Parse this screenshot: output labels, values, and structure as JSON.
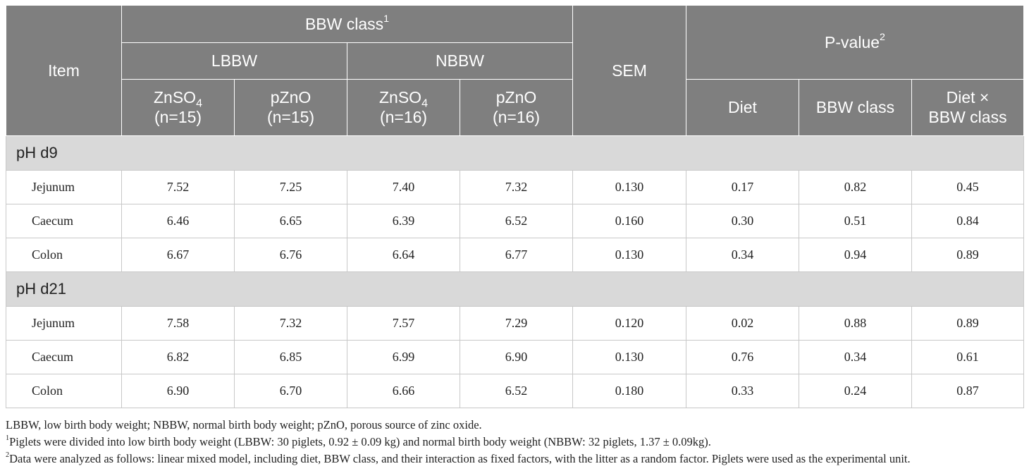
{
  "header": {
    "item": "Item",
    "bbw_class": "BBW class",
    "bbw_class_sup": "1",
    "lbbw": "LBBW",
    "nbbw": "NBBW",
    "sem": "SEM",
    "pvalue": "P-value",
    "pvalue_sup": "2",
    "cols": [
      {
        "base": "ZnSO",
        "sub": "4",
        "n": "(n=15)"
      },
      {
        "base": "pZnO",
        "sub": "",
        "n": "(n=15)"
      },
      {
        "base": "ZnSO",
        "sub": "4",
        "n": "(n=16)"
      },
      {
        "base": "pZnO",
        "sub": "",
        "n": "(n=16)"
      }
    ],
    "pcols": {
      "diet": "Diet",
      "bbw": "BBW class",
      "inter_line1": "Diet ×",
      "inter_line2": "BBW class"
    }
  },
  "sections": [
    {
      "title": "pH d9",
      "rows": [
        {
          "item": "Jejunum",
          "v": [
            "7.52",
            "7.25",
            "7.40",
            "7.32",
            "0.130",
            "0.17",
            "0.82",
            "0.45"
          ]
        },
        {
          "item": "Caecum",
          "v": [
            "6.46",
            "6.65",
            "6.39",
            "6.52",
            "0.160",
            "0.30",
            "0.51",
            "0.84"
          ]
        },
        {
          "item": "Colon",
          "v": [
            "6.67",
            "6.76",
            "6.64",
            "6.77",
            "0.130",
            "0.34",
            "0.94",
            "0.89"
          ]
        }
      ]
    },
    {
      "title": "pH d21",
      "rows": [
        {
          "item": "Jejunum",
          "v": [
            "7.58",
            "7.32",
            "7.57",
            "7.29",
            "0.120",
            "0.02",
            "0.88",
            "0.89"
          ]
        },
        {
          "item": "Caecum",
          "v": [
            "6.82",
            "6.85",
            "6.99",
            "6.90",
            "0.130",
            "0.76",
            "0.34",
            "0.61"
          ]
        },
        {
          "item": "Colon",
          "v": [
            "6.90",
            "6.70",
            "6.66",
            "6.52",
            "0.180",
            "0.33",
            "0.24",
            "0.87"
          ]
        }
      ]
    }
  ],
  "notes": {
    "abbrev": "LBBW, low birth body weight; NBBW, normal birth body weight; pZnO, porous source of zinc oxide.",
    "fn1_mark": "1",
    "fn1": "Piglets were divided into low birth body weight (LBBW: 30 piglets, 0.92 ± 0.09 kg) and normal birth body weight (NBBW: 32 piglets, 1.37 ± 0.09kg).",
    "fn2_mark": "2",
    "fn2": "Data were analyzed as follows: linear mixed model, including diet, BBW class, and their interaction as fixed factors, with the litter as a random factor. Piglets were used as the experimental unit."
  }
}
